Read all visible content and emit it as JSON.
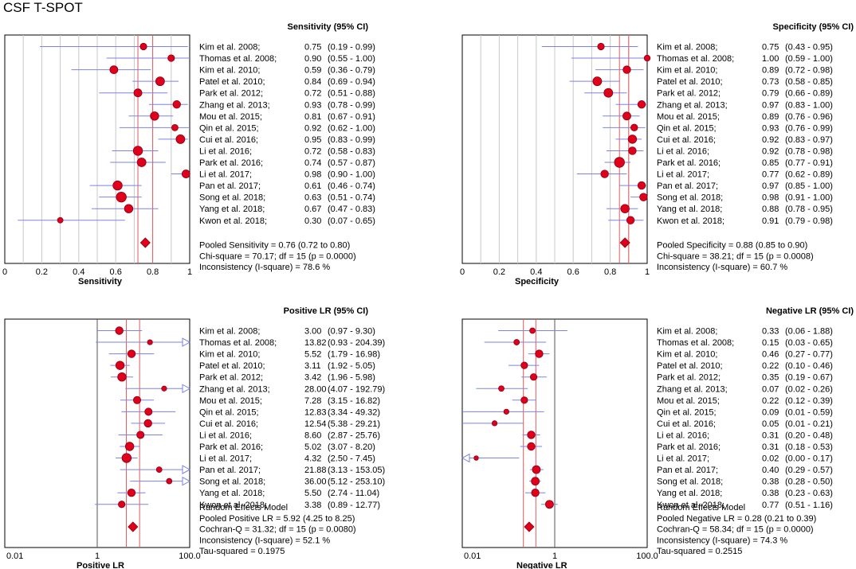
{
  "title": "CSF T-SPOT",
  "colors": {
    "ci_line": "#7b83e6",
    "point_fill": "#e0001b",
    "point_stroke": "#8a0010",
    "pooled_line": "#e35a5a",
    "grid": "#c8c8c8",
    "frame": "#000000"
  },
  "chart_data": [
    {
      "type": "forest",
      "scale": "linear",
      "header": "Sensitivity (95% CI)",
      "xlabel": "Sensitivity",
      "xlim": [
        0,
        1
      ],
      "ticks": [
        0,
        0.2,
        0.4,
        0.6,
        0.8,
        1
      ],
      "tick_labels": [
        "0",
        "0.2",
        "0.4",
        "0.6",
        "0.8",
        "1"
      ],
      "vertical_ref": null,
      "pooled": {
        "est": 0.76,
        "lo": 0.72,
        "hi": 0.8
      },
      "studies": [
        {
          "label": "Kim et al. 2008;",
          "est": 0.75,
          "lo": 0.19,
          "hi": 0.99,
          "est_text": "0.75",
          "ci_text": "(0.19 - 0.99)",
          "w": 4.2
        },
        {
          "label": "Thomas et al. 2008;",
          "est": 0.9,
          "lo": 0.55,
          "hi": 1.0,
          "est_text": "0.90",
          "ci_text": "(0.55 - 1.00)",
          "w": 4.2
        },
        {
          "label": "Kim et al. 2010;",
          "est": 0.59,
          "lo": 0.36,
          "hi": 0.79,
          "est_text": "0.59",
          "ci_text": "(0.36 - 0.79)",
          "w": 5.0
        },
        {
          "label": "Patel et al. 2010;",
          "est": 0.84,
          "lo": 0.69,
          "hi": 0.94,
          "est_text": "0.84",
          "ci_text": "(0.69 - 0.94)",
          "w": 5.5
        },
        {
          "label": "Park et al. 2012;",
          "est": 0.72,
          "lo": 0.51,
          "hi": 0.88,
          "est_text": "0.72",
          "ci_text": "(0.51 - 0.88)",
          "w": 5.0
        },
        {
          "label": "Zhang et al. 2013;",
          "est": 0.93,
          "lo": 0.78,
          "hi": 0.99,
          "est_text": "0.93",
          "ci_text": "(0.78 - 0.99)",
          "w": 4.8
        },
        {
          "label": "Mou et al. 2015;",
          "est": 0.81,
          "lo": 0.67,
          "hi": 0.91,
          "est_text": "0.81",
          "ci_text": "(0.67 - 0.91)",
          "w": 5.3
        },
        {
          "label": "Qin et al. 2015;",
          "est": 0.92,
          "lo": 0.62,
          "hi": 1.0,
          "est_text": "0.92",
          "ci_text": "(0.62 - 1.00)",
          "w": 4.0
        },
        {
          "label": "Cui et al. 2016;",
          "est": 0.95,
          "lo": 0.83,
          "hi": 0.99,
          "est_text": "0.95",
          "ci_text": "(0.83 - 0.99)",
          "w": 5.5
        },
        {
          "label": "Li et al. 2016;",
          "est": 0.72,
          "lo": 0.58,
          "hi": 0.83,
          "est_text": "0.72",
          "ci_text": "(0.58 - 0.83)",
          "w": 5.8
        },
        {
          "label": "Park et al. 2016;",
          "est": 0.74,
          "lo": 0.57,
          "hi": 0.87,
          "est_text": "0.74",
          "ci_text": "(0.57 - 0.87)",
          "w": 5.5
        },
        {
          "label": "Li et al. 2017;",
          "est": 0.98,
          "lo": 0.9,
          "hi": 1.0,
          "est_text": "0.98",
          "ci_text": "(0.90 - 1.00)",
          "w": 5.0
        },
        {
          "label": "Pan et al. 2017;",
          "est": 0.61,
          "lo": 0.46,
          "hi": 0.74,
          "est_text": "0.61",
          "ci_text": "(0.46 - 0.74)",
          "w": 5.8
        },
        {
          "label": "Song et al. 2018;",
          "est": 0.63,
          "lo": 0.51,
          "hi": 0.74,
          "est_text": "0.63",
          "ci_text": "(0.51 - 0.74)",
          "w": 6.3
        },
        {
          "label": "Yang et al. 2018;",
          "est": 0.67,
          "lo": 0.47,
          "hi": 0.83,
          "est_text": "0.67",
          "ci_text": "(0.47 - 0.83)",
          "w": 5.3
        },
        {
          "label": "Kwon et al. 2018;",
          "est": 0.3,
          "lo": 0.07,
          "hi": 0.65,
          "est_text": "0.30",
          "ci_text": "(0.07 - 0.65)",
          "w": 3.5
        }
      ],
      "summary_lines": [
        "Pooled Sensitivity = 0.76 (0.72 to 0.80)",
        "Chi-square = 70.17; df = 15 (p = 0.0000)",
        "Inconsistency (I-square) = 78.6 %"
      ]
    },
    {
      "type": "forest",
      "scale": "linear",
      "header": "Specificity (95% CI)",
      "xlabel": "Specificity",
      "xlim": [
        0,
        1
      ],
      "ticks": [
        0,
        0.2,
        0.4,
        0.6,
        0.8,
        1
      ],
      "tick_labels": [
        "0",
        "0.2",
        "0.4",
        "0.6",
        "0.8",
        "1"
      ],
      "vertical_ref": null,
      "pooled": {
        "est": 0.88,
        "lo": 0.85,
        "hi": 0.9
      },
      "studies": [
        {
          "label": "Kim et al. 2008;",
          "est": 0.75,
          "lo": 0.43,
          "hi": 0.95,
          "est_text": "0.75",
          "ci_text": "(0.43 - 0.95)",
          "w": 4.2
        },
        {
          "label": "Thomas et al. 2008;",
          "est": 1.0,
          "lo": 0.59,
          "hi": 1.0,
          "est_text": "1.00",
          "ci_text": "(0.59 - 1.00)",
          "w": 3.8
        },
        {
          "label": "Kim et al. 2010;",
          "est": 0.89,
          "lo": 0.72,
          "hi": 0.98,
          "est_text": "0.89",
          "ci_text": "(0.72 - 0.98)",
          "w": 4.8
        },
        {
          "label": "Patel et al. 2010;",
          "est": 0.73,
          "lo": 0.58,
          "hi": 0.85,
          "est_text": "0.73",
          "ci_text": "(0.58 - 0.85)",
          "w": 5.5
        },
        {
          "label": "Park et al. 2012;",
          "est": 0.79,
          "lo": 0.66,
          "hi": 0.89,
          "est_text": "0.79",
          "ci_text": "(0.66 - 0.89)",
          "w": 5.5
        },
        {
          "label": "Zhang et al. 2013;",
          "est": 0.97,
          "lo": 0.83,
          "hi": 1.0,
          "est_text": "0.97",
          "ci_text": "(0.83 - 1.00)",
          "w": 4.8
        },
        {
          "label": "Mou et al. 2015;",
          "est": 0.89,
          "lo": 0.76,
          "hi": 0.96,
          "est_text": "0.89",
          "ci_text": "(0.76 - 0.96)",
          "w": 5.0
        },
        {
          "label": "Qin et al. 2015;",
          "est": 0.93,
          "lo": 0.76,
          "hi": 0.99,
          "est_text": "0.93",
          "ci_text": "(0.76 - 0.99)",
          "w": 4.3
        },
        {
          "label": "Cui et al. 2016;",
          "est": 0.92,
          "lo": 0.83,
          "hi": 0.97,
          "est_text": "0.92",
          "ci_text": "(0.83 - 0.97)",
          "w": 5.3
        },
        {
          "label": "Li et al. 2016;",
          "est": 0.92,
          "lo": 0.78,
          "hi": 0.98,
          "est_text": "0.92",
          "ci_text": "(0.78 - 0.98)",
          "w": 4.8
        },
        {
          "label": "Park et al. 2016;",
          "est": 0.85,
          "lo": 0.77,
          "hi": 0.91,
          "est_text": "0.85",
          "ci_text": "(0.77 - 0.91)",
          "w": 6.3
        },
        {
          "label": "Li et al. 2017;",
          "est": 0.77,
          "lo": 0.62,
          "hi": 0.89,
          "est_text": "0.77",
          "ci_text": "(0.62 - 0.89)",
          "w": 4.8
        },
        {
          "label": "Pan et al. 2017;",
          "est": 0.97,
          "lo": 0.85,
          "hi": 1.0,
          "est_text": "0.97",
          "ci_text": "(0.85 - 1.00)",
          "w": 4.8
        },
        {
          "label": "Song et al. 2018;",
          "est": 0.98,
          "lo": 0.91,
          "hi": 1.0,
          "est_text": "0.98",
          "ci_text": "(0.91 - 1.00)",
          "w": 4.8
        },
        {
          "label": "Yang et al. 2018;",
          "est": 0.88,
          "lo": 0.78,
          "hi": 0.95,
          "est_text": "0.88",
          "ci_text": "(0.78 - 0.95)",
          "w": 5.3
        },
        {
          "label": "Kwon et al. 2018;",
          "est": 0.91,
          "lo": 0.79,
          "hi": 0.98,
          "est_text": "0.91",
          "ci_text": "(0.79 - 0.98)",
          "w": 4.8
        }
      ],
      "summary_lines": [
        "Pooled Specificity = 0.88 (0.85 to 0.90)",
        "Chi-square = 38.21; df = 15 (p = 0.0008)",
        "Inconsistency (I-square) = 60.7 %"
      ]
    },
    {
      "type": "forest",
      "scale": "log",
      "header": "Positive LR (95% CI)",
      "xlabel": "Positive LR",
      "xlim": [
        0.01,
        100
      ],
      "ticks": [
        0.01,
        1,
        100
      ],
      "tick_labels": [
        "0.01",
        "1",
        "100.0"
      ],
      "vertical_ref": 1,
      "pooled": {
        "est": 5.92,
        "lo": 4.25,
        "hi": 8.25
      },
      "studies": [
        {
          "label": "Kim et al. 2008;",
          "est": 3.0,
          "lo": 0.97,
          "hi": 9.3,
          "est_text": "3.00",
          "ci_text": "(0.97 - 9.30)",
          "w": 4.8
        },
        {
          "label": "Thomas et al. 2008;",
          "est": 13.82,
          "lo": 0.93,
          "hi": 204.39,
          "est_text": "13.82",
          "ci_text": "(0.93 - 204.39)",
          "w": 3.2
        },
        {
          "label": "Kim et al. 2010;",
          "est": 5.52,
          "lo": 1.79,
          "hi": 16.98,
          "est_text": "5.52",
          "ci_text": "(1.79 - 16.98)",
          "w": 4.8
        },
        {
          "label": "Patel et al. 2010;",
          "est": 3.11,
          "lo": 1.92,
          "hi": 5.05,
          "est_text": "3.11",
          "ci_text": "(1.92 - 5.05)",
          "w": 5.3
        },
        {
          "label": "Park et al. 2012;",
          "est": 3.42,
          "lo": 1.96,
          "hi": 5.98,
          "est_text": "3.42",
          "ci_text": "(1.96 - 5.98)",
          "w": 5.3
        },
        {
          "label": "Zhang et al. 2013;",
          "est": 28.0,
          "lo": 4.07,
          "hi": 192.79,
          "est_text": "28.00",
          "ci_text": "(4.07 - 192.79)",
          "w": 3.2
        },
        {
          "label": "Mou et al. 2015;",
          "est": 7.28,
          "lo": 3.15,
          "hi": 16.82,
          "est_text": "7.28",
          "ci_text": "(3.15 - 16.82)",
          "w": 4.6
        },
        {
          "label": "Qin et al. 2015;",
          "est": 12.83,
          "lo": 3.34,
          "hi": 49.32,
          "est_text": "12.83",
          "ci_text": "(3.34 - 49.32)",
          "w": 4.6
        },
        {
          "label": "Cui et al. 2016;",
          "est": 12.54,
          "lo": 5.38,
          "hi": 29.21,
          "est_text": "12.54",
          "ci_text": "(5.38 - 29.21)",
          "w": 4.8
        },
        {
          "label": "Li et al. 2016;",
          "est": 8.6,
          "lo": 2.87,
          "hi": 25.76,
          "est_text": "8.60",
          "ci_text": "(2.87 - 25.76)",
          "w": 4.6
        },
        {
          "label": "Park et al. 2016;",
          "est": 5.02,
          "lo": 3.07,
          "hi": 8.2,
          "est_text": "5.02",
          "ci_text": "(3.07 - 8.20)",
          "w": 5.3
        },
        {
          "label": "Li et al. 2017;",
          "est": 4.32,
          "lo": 2.5,
          "hi": 7.45,
          "est_text": "4.32",
          "ci_text": "(2.50 - 7.45)",
          "w": 5.8
        },
        {
          "label": "Pan et al. 2017;",
          "est": 21.88,
          "lo": 3.13,
          "hi": 153.05,
          "est_text": "21.88",
          "ci_text": "(3.13 - 153.05)",
          "w": 3.5
        },
        {
          "label": "Song et al. 2018;",
          "est": 36.0,
          "lo": 5.12,
          "hi": 253.1,
          "est_text": "36.00",
          "ci_text": "(5.12 - 253.10)",
          "w": 3.5
        },
        {
          "label": "Yang et al. 2018;",
          "est": 5.5,
          "lo": 2.74,
          "hi": 11.04,
          "est_text": "5.50",
          "ci_text": "(2.74 - 11.04)",
          "w": 4.8
        },
        {
          "label": "Kwon et al. 2018;",
          "est": 3.38,
          "lo": 0.89,
          "hi": 12.77,
          "est_text": "3.38",
          "ci_text": "(0.89 - 12.77)",
          "w": 4.2
        }
      ],
      "summary_lines": [
        "Random Effects Model",
        "Pooled Positive LR = 5.92 (4.25 to 8.25)",
        "Cochran-Q = 31.32; df = 15 (p = 0.0080)",
        "Inconsistency (I-square) = 52.1 %",
        "Tau-squared = 0.1975"
      ]
    },
    {
      "type": "forest",
      "scale": "log",
      "header": "Negative LR (95% CI)",
      "xlabel": "Negative LR",
      "xlim": [
        0.01,
        100
      ],
      "ticks": [
        0.01,
        1,
        100
      ],
      "tick_labels": [
        "0.01",
        "1",
        "100.0"
      ],
      "vertical_ref": 1,
      "pooled": {
        "est": 0.28,
        "lo": 0.21,
        "hi": 0.39
      },
      "studies": [
        {
          "label": "Kim et al. 2008;",
          "est": 0.33,
          "lo": 0.06,
          "hi": 1.88,
          "est_text": "0.33",
          "ci_text": "(0.06 - 1.88)",
          "w": 3.5
        },
        {
          "label": "Thomas et al. 2008;",
          "est": 0.15,
          "lo": 0.03,
          "hi": 0.65,
          "est_text": "0.15",
          "ci_text": "(0.03 - 0.65)",
          "w": 3.5
        },
        {
          "label": "Kim et al. 2010;",
          "est": 0.46,
          "lo": 0.27,
          "hi": 0.77,
          "est_text": "0.46",
          "ci_text": "(0.27 - 0.77)",
          "w": 4.8
        },
        {
          "label": "Patel et al. 2010;",
          "est": 0.22,
          "lo": 0.1,
          "hi": 0.46,
          "est_text": "0.22",
          "ci_text": "(0.10 - 0.46)",
          "w": 4.2
        },
        {
          "label": "Park et al. 2012;",
          "est": 0.35,
          "lo": 0.19,
          "hi": 0.67,
          "est_text": "0.35",
          "ci_text": "(0.19 - 0.67)",
          "w": 4.2
        },
        {
          "label": "Zhang et al. 2013;",
          "est": 0.07,
          "lo": 0.02,
          "hi": 0.26,
          "est_text": "0.07",
          "ci_text": "(0.02 - 0.26)",
          "w": 3.5
        },
        {
          "label": "Mou et al. 2015;",
          "est": 0.22,
          "lo": 0.12,
          "hi": 0.39,
          "est_text": "0.22",
          "ci_text": "(0.12 - 0.39)",
          "w": 4.2
        },
        {
          "label": "Qin et al. 2015;",
          "est": 0.09,
          "lo": 0.01,
          "hi": 0.59,
          "est_text": "0.09",
          "ci_text": "(0.01 - 0.59)",
          "w": 3.2
        },
        {
          "label": "Cui et al. 2016;",
          "est": 0.05,
          "lo": 0.01,
          "hi": 0.21,
          "est_text": "0.05",
          "ci_text": "(0.01 - 0.21)",
          "w": 3.2
        },
        {
          "label": "Li et al. 2016;",
          "est": 0.31,
          "lo": 0.2,
          "hi": 0.48,
          "est_text": "0.31",
          "ci_text": "(0.20 - 0.48)",
          "w": 4.8
        },
        {
          "label": "Park et al. 2016;",
          "est": 0.31,
          "lo": 0.18,
          "hi": 0.53,
          "est_text": "0.31",
          "ci_text": "(0.18 - 0.53)",
          "w": 4.8
        },
        {
          "label": "Li et al. 2017;",
          "est": 0.02,
          "lo": 0.0,
          "hi": 0.17,
          "est_text": "0.02",
          "ci_text": "(0.00 - 0.17)",
          "w": 2.8
        },
        {
          "label": "Pan et al. 2017;",
          "est": 0.4,
          "lo": 0.29,
          "hi": 0.57,
          "est_text": "0.40",
          "ci_text": "(0.29 - 0.57)",
          "w": 5.0
        },
        {
          "label": "Song et al. 2018;",
          "est": 0.38,
          "lo": 0.28,
          "hi": 0.5,
          "est_text": "0.38",
          "ci_text": "(0.28 - 0.50)",
          "w": 5.0
        },
        {
          "label": "Yang et al. 2018;",
          "est": 0.38,
          "lo": 0.23,
          "hi": 0.63,
          "est_text": "0.38",
          "ci_text": "(0.23 - 0.63)",
          "w": 4.8
        },
        {
          "label": "Kwon et al. 2018;",
          "est": 0.77,
          "lo": 0.51,
          "hi": 1.16,
          "est_text": "0.77",
          "ci_text": "(0.51 - 1.16)",
          "w": 5.0
        }
      ],
      "summary_lines": [
        "Random Effects Model",
        "Pooled Negative LR = 0.28 (0.21 to 0.39)",
        "Cochran-Q = 58.34; df = 15 (p = 0.0000)",
        "Inconsistency (I-square) = 74.3 %",
        "Tau-squared = 0.2515"
      ]
    }
  ]
}
